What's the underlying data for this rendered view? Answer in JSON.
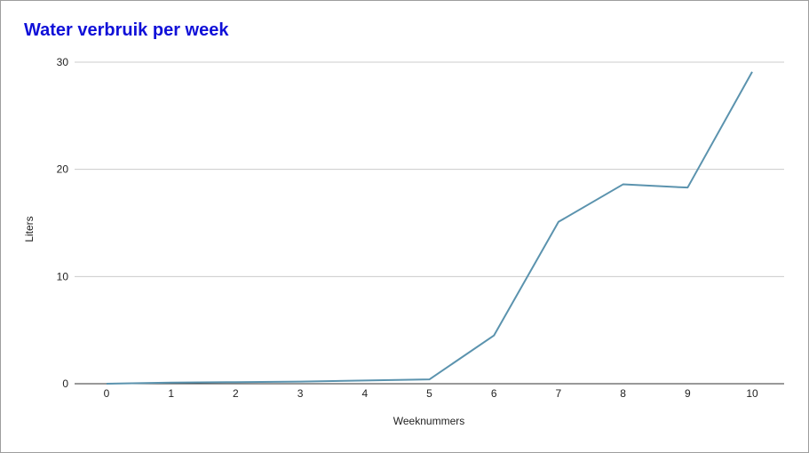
{
  "chart_data": {
    "type": "line",
    "title": "Water verbruik per week",
    "xlabel": "Weeknummers",
    "ylabel": "Liters",
    "x": [
      0,
      1,
      2,
      3,
      4,
      5,
      6,
      7,
      8,
      9,
      10
    ],
    "series": [
      {
        "values": [
          0,
          0.1,
          0.15,
          0.2,
          0.3,
          0.4,
          4.5,
          15.1,
          18.6,
          18.3,
          29.1
        ],
        "color": "#5b93ae"
      }
    ],
    "xticks": [
      "0",
      "1",
      "2",
      "3",
      "4",
      "5",
      "6",
      "7",
      "8",
      "9",
      "10"
    ],
    "yticks": [
      0,
      10,
      20,
      30
    ],
    "ylim": [
      0,
      30
    ],
    "xlim": [
      0,
      10
    ],
    "grid": true,
    "legend": "none",
    "colors": {
      "title": "#1010d8",
      "grid": "#cccccc",
      "axis": "#333333",
      "text": "#222222"
    }
  }
}
